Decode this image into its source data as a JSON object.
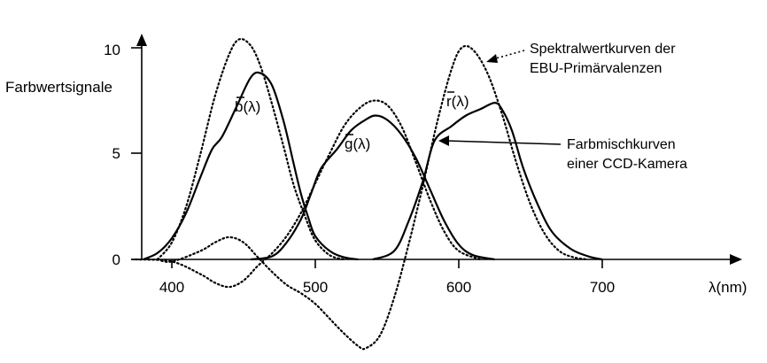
{
  "chart_data": {
    "type": "line",
    "title": "",
    "xlabel": "λ(nm)",
    "ylabel": "Farbwertsignale",
    "xlim": [
      375,
      830
    ],
    "ylim": [
      -4.2,
      10.5
    ],
    "x_ticks": [
      400,
      500,
      600,
      700
    ],
    "x_tick_labels": [
      "400",
      "500",
      "600",
      "700"
    ],
    "y_ticks": [
      0,
      5,
      10
    ],
    "y_tick_labels": [
      "0",
      "5",
      "10"
    ],
    "grid": false,
    "series": [
      {
        "name": "b(λ) CCD",
        "style": "solid",
        "label": "b(λ)",
        "points": [
          [
            380,
            0
          ],
          [
            390,
            0.3
          ],
          [
            400,
            1.0
          ],
          [
            410,
            2.2
          ],
          [
            420,
            3.9
          ],
          [
            428,
            5.2
          ],
          [
            435,
            5.8
          ],
          [
            445,
            7.2
          ],
          [
            455,
            8.6
          ],
          [
            462,
            8.8
          ],
          [
            470,
            8.2
          ],
          [
            478,
            6.5
          ],
          [
            485,
            4.5
          ],
          [
            490,
            3.1
          ],
          [
            495,
            2.0
          ],
          [
            500,
            1.1
          ],
          [
            510,
            0.4
          ],
          [
            520,
            0.1
          ],
          [
            530,
            0
          ]
        ]
      },
      {
        "name": "g(λ) CCD",
        "style": "solid",
        "label": "g(λ)",
        "points": [
          [
            455,
            0
          ],
          [
            470,
            0.15
          ],
          [
            480,
            0.8
          ],
          [
            490,
            1.9
          ],
          [
            497,
            3.1
          ],
          [
            504,
            4.3
          ],
          [
            515,
            5.2
          ],
          [
            525,
            6.1
          ],
          [
            535,
            6.6
          ],
          [
            542,
            6.8
          ],
          [
            550,
            6.6
          ],
          [
            560,
            5.9
          ],
          [
            570,
            4.8
          ],
          [
            580,
            3.3
          ],
          [
            590,
            1.8
          ],
          [
            600,
            0.7
          ],
          [
            610,
            0.2
          ],
          [
            625,
            0
          ]
        ]
      },
      {
        "name": "r(λ) CCD",
        "style": "solid",
        "label": "r(λ)",
        "points": [
          [
            540,
            0
          ],
          [
            555,
            0.4
          ],
          [
            565,
            1.8
          ],
          [
            575,
            3.7
          ],
          [
            583,
            5.6
          ],
          [
            595,
            6.3
          ],
          [
            605,
            6.8
          ],
          [
            615,
            7.1
          ],
          [
            625,
            7.4
          ],
          [
            630,
            7.1
          ],
          [
            637,
            6.1
          ],
          [
            645,
            4.3
          ],
          [
            655,
            2.6
          ],
          [
            665,
            1.3
          ],
          [
            678,
            0.5
          ],
          [
            690,
            0.15
          ],
          [
            700,
            0
          ]
        ]
      },
      {
        "name": "b(λ) EBU",
        "style": "dotted",
        "points": [
          [
            390,
            0
          ],
          [
            400,
            0.8
          ],
          [
            410,
            2.5
          ],
          [
            420,
            5.0
          ],
          [
            430,
            7.7
          ],
          [
            440,
            9.7
          ],
          [
            447,
            10.4
          ],
          [
            455,
            10.1
          ],
          [
            462,
            9.1
          ],
          [
            470,
            7.3
          ],
          [
            478,
            5.3
          ],
          [
            485,
            3.5
          ],
          [
            493,
            2.0
          ],
          [
            500,
            0.9
          ],
          [
            510,
            0.2
          ],
          [
            520,
            0
          ]
        ]
      },
      {
        "name": "g(λ) EBU",
        "style": "dotted",
        "points": [
          [
            375,
            0
          ],
          [
            400,
            -0.1
          ],
          [
            420,
            -0.7
          ],
          [
            430,
            -1.1
          ],
          [
            440,
            -1.3
          ],
          [
            450,
            -1.0
          ],
          [
            460,
            -0.3
          ],
          [
            470,
            0.3
          ],
          [
            480,
            1.1
          ],
          [
            490,
            2.2
          ],
          [
            500,
            3.6
          ],
          [
            510,
            5.0
          ],
          [
            520,
            6.3
          ],
          [
            530,
            7.1
          ],
          [
            540,
            7.5
          ],
          [
            550,
            7.3
          ],
          [
            560,
            6.3
          ],
          [
            570,
            4.6
          ],
          [
            580,
            2.8
          ],
          [
            590,
            1.3
          ],
          [
            600,
            0.4
          ],
          [
            615,
            0
          ]
        ]
      },
      {
        "name": "r(λ) EBU",
        "style": "dotted",
        "points": [
          [
            390,
            0
          ],
          [
            400,
            -0.1
          ],
          [
            420,
            0.4
          ],
          [
            430,
            0.8
          ],
          [
            440,
            1.05
          ],
          [
            450,
            0.8
          ],
          [
            460,
            0.1
          ],
          [
            470,
            -0.6
          ],
          [
            480,
            -1.2
          ],
          [
            490,
            -1.6
          ],
          [
            500,
            -2.1
          ],
          [
            510,
            -2.8
          ],
          [
            520,
            -3.5
          ],
          [
            530,
            -4.1
          ],
          [
            535,
            -4.2
          ],
          [
            545,
            -3.6
          ],
          [
            555,
            -1.8
          ],
          [
            565,
            0.7
          ],
          [
            575,
            3.5
          ],
          [
            585,
            6.5
          ],
          [
            595,
            9.0
          ],
          [
            602,
            10.0
          ],
          [
            610,
            9.9
          ],
          [
            620,
            8.8
          ],
          [
            630,
            6.9
          ],
          [
            640,
            4.6
          ],
          [
            650,
            2.6
          ],
          [
            660,
            1.2
          ],
          [
            670,
            0.4
          ],
          [
            680,
            0.1
          ],
          [
            690,
            0
          ]
        ]
      }
    ],
    "annotations": {
      "b_label": "b(λ)",
      "g_label": "g(λ)",
      "r_label": "r(λ)",
      "ebu_line1": "Spektralwertkurven der",
      "ebu_line2": "EBU-Primärvalenzen",
      "ccd_line1": "Farbmischkurven",
      "ccd_line2": "einer CCD-Kamera"
    }
  }
}
